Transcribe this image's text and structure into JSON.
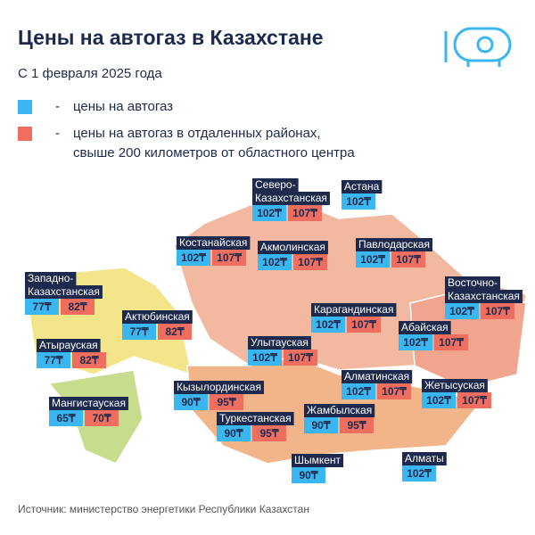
{
  "header": {
    "title": "Цены на автогаз в Казахстане",
    "subtitle": "С 1 февраля 2025 года"
  },
  "legend": [
    {
      "marker": "-",
      "lines": [
        "цены на автогаз"
      ]
    },
    {
      "marker": "-",
      "lines": [
        "цены на автогаз в отдаленных районах,",
        "свыше 200 километров от областного центра"
      ]
    }
  ],
  "regions": [
    {
      "name": [
        "Северо-",
        "Казахстанская"
      ],
      "prices": [
        "102₸",
        "107₸"
      ]
    },
    {
      "name": [
        "Астана"
      ],
      "prices": [
        "102₸"
      ]
    },
    {
      "name": [
        "Костанайская"
      ],
      "prices": [
        "102₸",
        "107₸"
      ]
    },
    {
      "name": [
        "Акмолинская"
      ],
      "prices": [
        "102₸",
        "107₸"
      ]
    },
    {
      "name": [
        "Павлодарская"
      ],
      "prices": [
        "102₸",
        "107₸"
      ]
    },
    {
      "name": [
        "Западно-",
        "Казахстанская"
      ],
      "prices": [
        "77₸",
        "82₸"
      ]
    },
    {
      "name": [
        "Актюбинская"
      ],
      "prices": [
        "77₸",
        "82₸"
      ]
    },
    {
      "name": [
        "Восточно-",
        "Казахстанская"
      ],
      "prices": [
        "102₸",
        "107₸"
      ]
    },
    {
      "name": [
        "Карагандинская"
      ],
      "prices": [
        "102₸",
        "107₸"
      ]
    },
    {
      "name": [
        "Абайская"
      ],
      "prices": [
        "102₸",
        "107₸"
      ]
    },
    {
      "name": [
        "Атырауская"
      ],
      "prices": [
        "77₸",
        "82₸"
      ]
    },
    {
      "name": [
        "Улытауская"
      ],
      "prices": [
        "102₸",
        "107₸"
      ]
    },
    {
      "name": [
        "Кызылординская"
      ],
      "prices": [
        "90₸",
        "95₸"
      ]
    },
    {
      "name": [
        "Алматинская"
      ],
      "prices": [
        "102₸",
        "107₸"
      ]
    },
    {
      "name": [
        "Жетысуская"
      ],
      "prices": [
        "102₸",
        "107₸"
      ]
    },
    {
      "name": [
        "Мангистауская"
      ],
      "prices": [
        "65₸",
        "70₸"
      ]
    },
    {
      "name": [
        "Жамбылская"
      ],
      "prices": [
        "90₸",
        "95₸"
      ]
    },
    {
      "name": [
        "Туркестанская"
      ],
      "prices": [
        "90₸",
        "95₸"
      ]
    },
    {
      "name": [
        "Шымкент"
      ],
      "prices": [
        "90₸"
      ]
    },
    {
      "name": [
        "Алматы"
      ],
      "prices": [
        "102₸"
      ]
    }
  ],
  "source": "Источник: министерство энергетики Республики Казахстан"
}
